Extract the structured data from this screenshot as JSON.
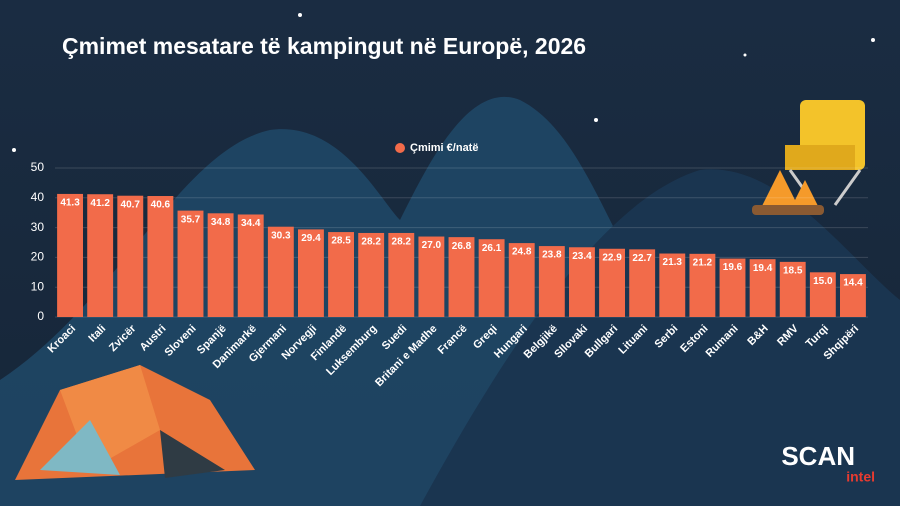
{
  "chart_data": {
    "type": "bar",
    "title": "Çmimet mesatare të kampingut në Europë, 2026",
    "categories": [
      "Kroaci",
      "Itali",
      "Zvicër",
      "Austri",
      "Sloveni",
      "Spanjë",
      "Danimarkë",
      "Gjermani",
      "Norvegji",
      "Finlandë",
      "Luksemburg",
      "Suedi",
      "Britani e Madhe",
      "Francë",
      "Greqi",
      "Hungari",
      "Belgjikë",
      "Sllovaki",
      "Bullgari",
      "Lituani",
      "Serbi",
      "Estoni",
      "Rumani",
      "B&H",
      "RMV",
      "Turqi",
      "Shqipëri"
    ],
    "series": [
      {
        "name": "Çmimi €/natë",
        "color": "#f26b4a",
        "values": [
          41.3,
          41.2,
          40.7,
          40.6,
          35.7,
          34.8,
          34.4,
          30.3,
          29.4,
          28.5,
          28.2,
          28.2,
          27.0,
          26.8,
          26.1,
          24.8,
          23.8,
          23.4,
          22.9,
          22.7,
          21.3,
          21.2,
          19.6,
          19.4,
          18.5,
          15.0,
          14.4
        ],
        "value_labels": [
          "41.3",
          "41.2",
          "40.7",
          "40.6",
          "35.7",
          "34.8",
          "34.4",
          "30.3",
          "29.4",
          "28.5",
          "28.2",
          "28.2",
          "27.0",
          "26.8",
          "26.1",
          "24.8",
          "23.8",
          "23.4",
          "22.9",
          "22.7",
          "21.3",
          "21.2",
          "19.6",
          "19.4",
          "18.5",
          "15.0",
          "14.4"
        ]
      }
    ],
    "ylim": [
      0,
      50
    ],
    "yticks": [
      0,
      10,
      20,
      30,
      40,
      50
    ],
    "grid": true,
    "legend": "top"
  },
  "brand": {
    "name": "SCAN",
    "sub": "intel"
  }
}
